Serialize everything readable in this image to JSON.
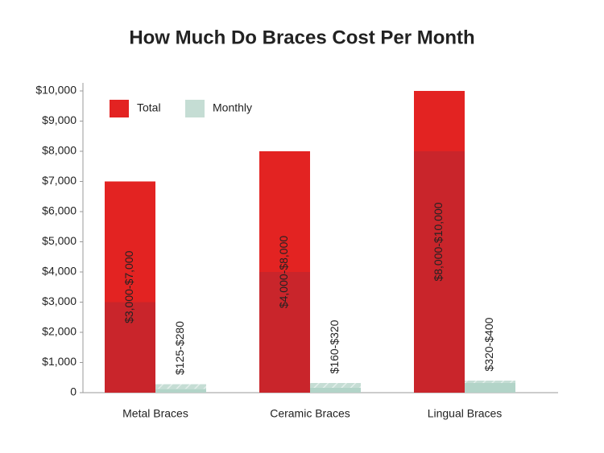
{
  "chart_data": {
    "type": "range-bar",
    "title": "How Much Do Braces Cost Per Month",
    "categories": [
      "Metal Braces",
      "Ceramic Braces",
      "Lingual Braces"
    ],
    "series": [
      {
        "name": "Total",
        "color": "#e32322",
        "low_color": "#c9252b",
        "low": [
          3000,
          4000,
          8000
        ],
        "high": [
          7000,
          8000,
          10000
        ],
        "value_labels": [
          "$3,000-$7,000",
          "$4,000-$8,000",
          "$8,000-$10,000"
        ]
      },
      {
        "name": "Monthly",
        "color": "#c5ddd4",
        "low_color": "#b2d4c8",
        "low": [
          125,
          160,
          320
        ],
        "high": [
          280,
          320,
          400
        ],
        "value_labels": [
          "$125-$280",
          "$160-$320",
          "$320-$400"
        ]
      }
    ],
    "ylim": [
      0,
      10000
    ],
    "yticks": [
      0,
      {
        "value": 1000,
        "label": "$1,000"
      },
      {
        "value": 2000,
        "label": "$2,000"
      },
      {
        "value": 3000,
        "label": "$3,000"
      },
      {
        "value": 4000,
        "label": "$4,000"
      },
      {
        "value": 5000,
        "label": "$5,000"
      },
      {
        "value": 6000,
        "label": "$6,000"
      },
      {
        "value": 7000,
        "label": "$7,000"
      },
      {
        "value": 8000,
        "label": "$8,000"
      },
      {
        "value": 9000,
        "label": "$9,000"
      },
      {
        "value": 10000,
        "label": "$10,000"
      }
    ],
    "legend": "top-left"
  }
}
